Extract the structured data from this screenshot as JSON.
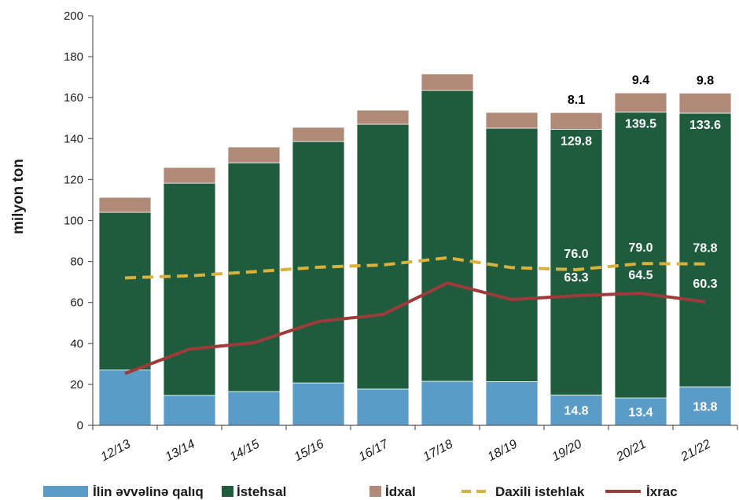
{
  "chart_data": {
    "type": "bar",
    "stacked": true,
    "xlabel": "",
    "ylabel": "milyon ton",
    "ylim": [
      0,
      200
    ],
    "yticks": [
      0,
      20,
      40,
      60,
      80,
      100,
      120,
      140,
      160,
      180,
      200
    ],
    "categories": [
      "12/13",
      "13/14",
      "14/15",
      "15/16",
      "16/17",
      "17/18",
      "18/19",
      "19/20",
      "20/21",
      "21/22"
    ],
    "series": [
      {
        "name": "İlin əvvəlinə qalıq",
        "type": "bar",
        "color": "#5b9bc7",
        "values": [
          27.0,
          14.6,
          16.5,
          20.7,
          17.7,
          21.5,
          21.3,
          14.8,
          13.4,
          18.8
        ]
      },
      {
        "name": "İstehsal",
        "type": "bar",
        "color": "#1f5c3e",
        "values": [
          77.0,
          103.6,
          111.7,
          117.9,
          129.3,
          142.0,
          123.8,
          129.8,
          139.5,
          133.6
        ]
      },
      {
        "name": "İdxal",
        "type": "bar",
        "color": "#b08978",
        "values": [
          7.3,
          7.7,
          7.7,
          6.9,
          6.9,
          8.1,
          7.7,
          8.1,
          9.4,
          9.8
        ]
      },
      {
        "name": "Daxili istehlak",
        "type": "line",
        "line_style": "dashed",
        "color": "#d8b13e",
        "values": [
          72.0,
          73.0,
          75.0,
          77.2,
          78.3,
          81.8,
          77.0,
          76.0,
          79.0,
          78.8
        ]
      },
      {
        "name": "İxrac",
        "type": "line",
        "line_style": "solid",
        "color": "#9e3a3a",
        "values": [
          25.3,
          37.2,
          40.3,
          50.7,
          54.1,
          69.5,
          61.4,
          63.3,
          64.5,
          60.3
        ]
      }
    ],
    "data_labels": [
      {
        "series": 0,
        "category": 7,
        "text": "14.8"
      },
      {
        "series": 0,
        "category": 8,
        "text": "13.4"
      },
      {
        "series": 0,
        "category": 9,
        "text": "18.8"
      },
      {
        "series": 1,
        "category": 7,
        "text": "129.8"
      },
      {
        "series": 1,
        "category": 8,
        "text": "139.5"
      },
      {
        "series": 1,
        "category": 9,
        "text": "133.6"
      },
      {
        "series": 2,
        "category": 7,
        "text": "8.1"
      },
      {
        "series": 2,
        "category": 8,
        "text": "9.4"
      },
      {
        "series": 2,
        "category": 9,
        "text": "9.8"
      },
      {
        "series": 3,
        "category": 7,
        "text": "76.0"
      },
      {
        "series": 3,
        "category": 8,
        "text": "79.0"
      },
      {
        "series": 3,
        "category": 9,
        "text": "78.8"
      },
      {
        "series": 4,
        "category": 7,
        "text": "63.3"
      },
      {
        "series": 4,
        "category": 8,
        "text": "64.5"
      },
      {
        "series": 4,
        "category": 9,
        "text": "60.3"
      }
    ],
    "grid": false,
    "legend": "bottom"
  }
}
